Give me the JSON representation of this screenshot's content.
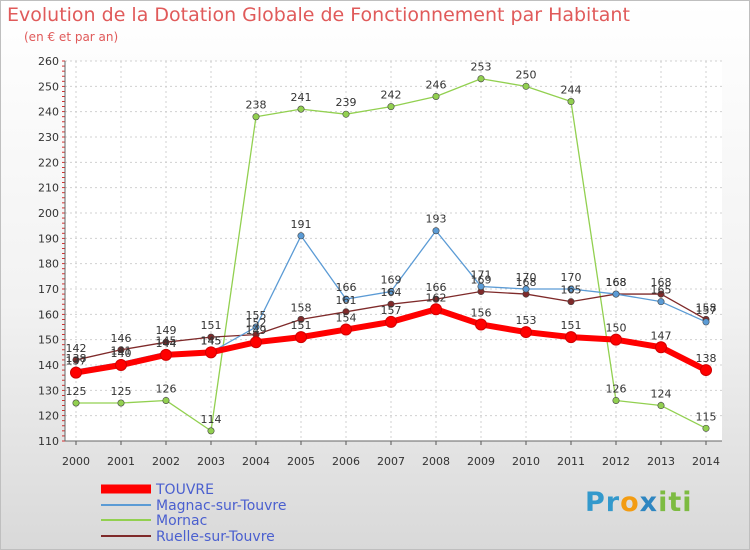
{
  "title": "Evolution de la Dotation Globale de Fonctionnement par Habitant",
  "subtitle": "(en € et par an)",
  "logo_text": "Proxiti",
  "chart_data": {
    "type": "line",
    "title": "Evolution de la Dotation Globale de Fonctionnement par Habitant",
    "subtitle": "(en € et par an)",
    "xlabel": "",
    "ylabel": "",
    "x": [
      "2000",
      "2001",
      "2002",
      "2003",
      "2004",
      "2005",
      "2006",
      "2007",
      "2008",
      "2009",
      "2010",
      "2011",
      "2012",
      "2013",
      "2014"
    ],
    "ylim": [
      110,
      260
    ],
    "yticks": [
      110,
      120,
      130,
      140,
      150,
      160,
      170,
      180,
      190,
      200,
      210,
      220,
      230,
      240,
      250,
      260
    ],
    "grid": true,
    "legend": "bottom-left",
    "series": [
      {
        "name": "TOUVRE",
        "color": "#ff0000",
        "values": [
          137,
          140,
          144,
          145,
          149,
          151,
          154,
          157,
          162,
          156,
          153,
          151,
          150,
          147,
          138
        ]
      },
      {
        "name": "Magnac-sur-Touvre",
        "color": "#5b9bd5",
        "values": [
          138,
          141,
          145,
          145,
          155,
          191,
          166,
          169,
          193,
          171,
          170,
          170,
          168,
          165,
          157
        ]
      },
      {
        "name": "Mornac",
        "color": "#92d050",
        "values": [
          125,
          125,
          126,
          114,
          238,
          241,
          239,
          242,
          246,
          253,
          250,
          244,
          126,
          124,
          115
        ]
      },
      {
        "name": "Ruelle-sur-Touvre",
        "color": "#7f2a2a",
        "values": [
          142,
          146,
          149,
          151,
          152,
          158,
          161,
          164,
          166,
          169,
          168,
          165,
          168,
          168,
          158
        ]
      }
    ],
    "value_labels": {
      "TOUVRE": [
        "137",
        "140",
        "144",
        "145",
        "149",
        "151",
        "154",
        "157",
        "162",
        "156",
        "153",
        "151",
        "150",
        "147",
        "138"
      ],
      "Magnac-sur-Touvre": [
        "138",
        "141",
        "145",
        "145",
        "155",
        "191",
        "166",
        "169",
        "193",
        "171",
        "170",
        "170",
        "168",
        "165",
        "157"
      ],
      "Mornac": [
        "125",
        "125",
        "126",
        "114",
        "238",
        "241",
        "239",
        "242",
        "246",
        "253",
        "250",
        "244",
        "126",
        "124",
        "115"
      ],
      "Ruelle-sur-Touvre": [
        "142",
        "146",
        "149",
        "151",
        "152",
        "158",
        "161",
        "164",
        "166",
        "169",
        "168",
        "165",
        "168",
        "168",
        "158"
      ]
    }
  }
}
